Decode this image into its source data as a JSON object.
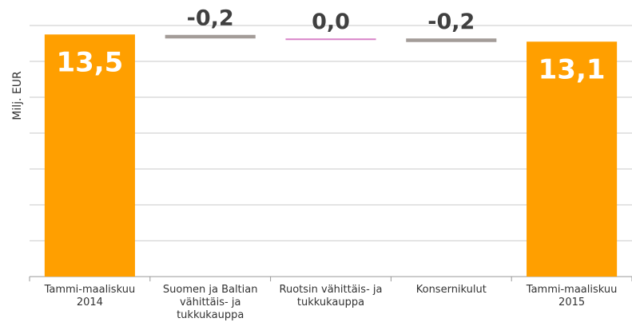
{
  "chart_data": {
    "type": "waterfall",
    "y_label": "Milj. EUR",
    "categories": [
      "Tammi-maaliskuu 2014",
      "Suomen ja Baltian vähittäis- ja tukkukauppa",
      "Ruotsin vähittäis- ja tukkukauppa",
      "Konsernikulut",
      "Tammi-maaliskuu 2015"
    ],
    "measures": [
      "absolute",
      "relative",
      "relative",
      "relative",
      "absolute"
    ],
    "values": [
      13.5,
      -0.2,
      0.0,
      -0.2,
      13.1
    ],
    "value_labels": [
      "13,5",
      "-0,2",
      "0,0",
      "-0,2",
      "13,1"
    ],
    "colors": [
      "#ff9f00",
      "#a39c98",
      "#d883c8",
      "#a39c98",
      "#ff9f00"
    ],
    "ylim": [
      0,
      14
    ],
    "yticks": [
      0,
      2,
      4,
      6,
      8,
      10,
      12,
      14
    ],
    "grid": true
  }
}
